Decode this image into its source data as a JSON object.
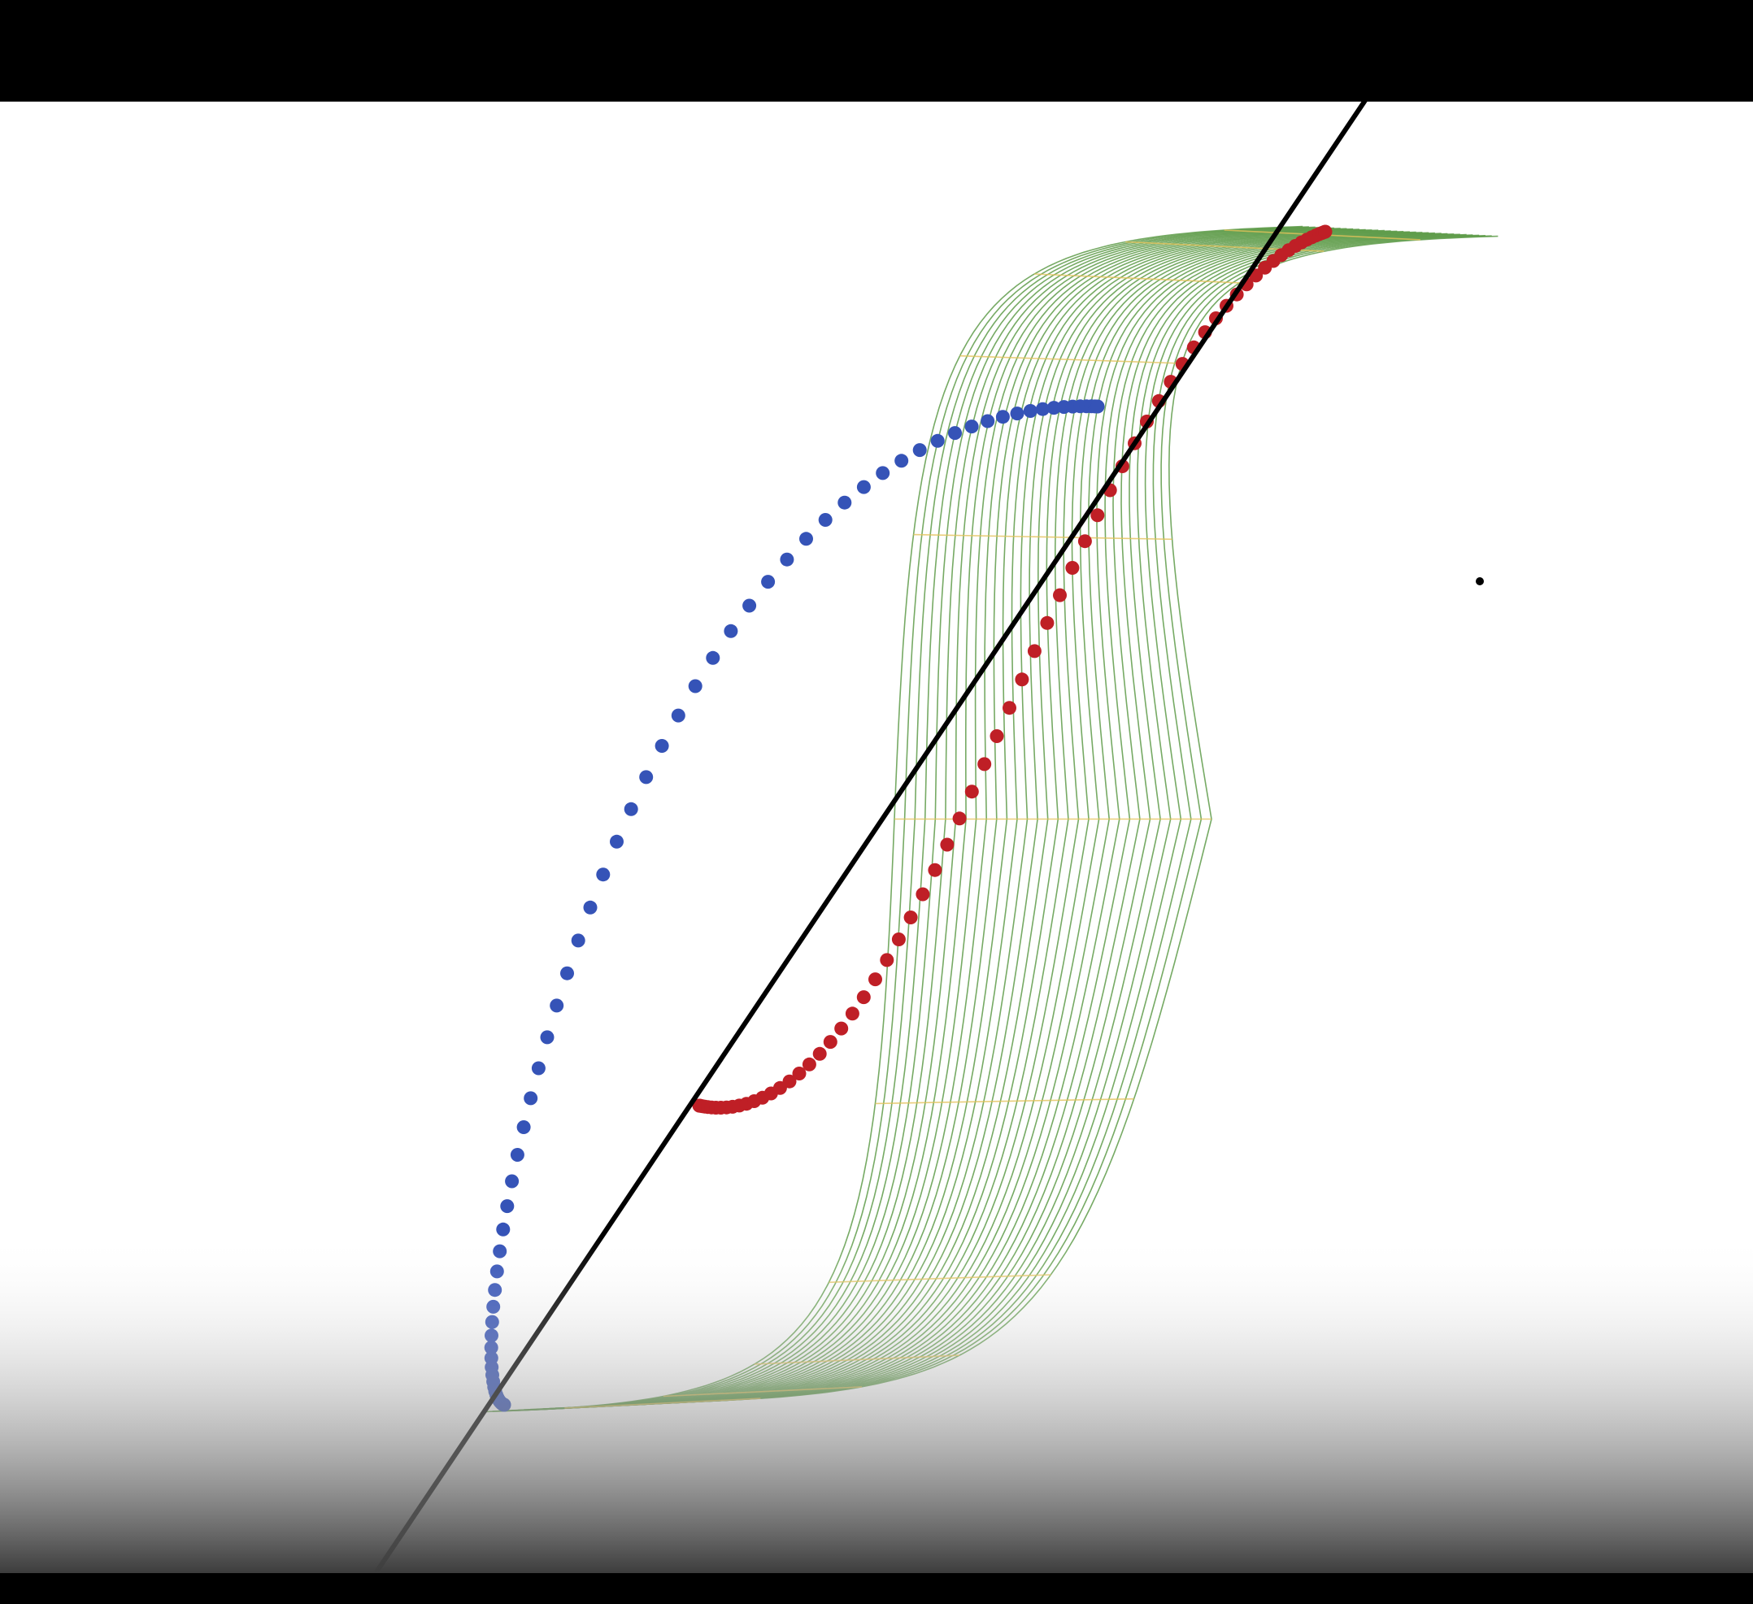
{
  "colors": {
    "frame_bar": "#000000",
    "background": "#ffffff",
    "sheet_line": "#5e9b49",
    "sheet_cross_line": "#e4c25a",
    "ascending_branch": "#3553b7",
    "descending_branch": "#bf1f26",
    "diagonal_line": "#000000",
    "bottom_fade_end": "#3d3d3d"
  },
  "visual": {
    "sheet_line_count": 32,
    "sheet_cross_line_count": 11,
    "ascending_dot_count": 72,
    "descending_dot_count": 72
  }
}
